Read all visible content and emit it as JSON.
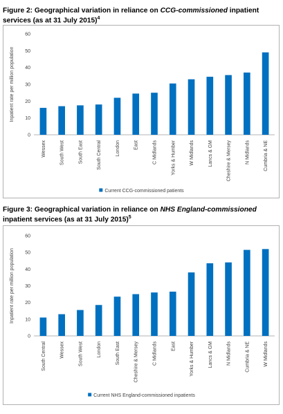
{
  "figure2": {
    "title_prefix": "Figure 2: Geographical variation in reliance on ",
    "title_em": "CCG-commissioned",
    "title_suffix": " inpatient services (as at 31 July 2015)",
    "footnote": "4"
  },
  "figure3": {
    "title_prefix": "Figure 3: Geographical variation in reliance on ",
    "title_em": "NHS England-commissioned",
    "title_suffix": " inpatient services (as at 31 July 2015)",
    "footnote": "5"
  },
  "chart_data": [
    {
      "type": "bar",
      "title": "",
      "xlabel": "",
      "ylabel": "Inpatient rate per million population",
      "ylim": [
        0,
        60
      ],
      "yticks": [
        0,
        10,
        20,
        30,
        40,
        50,
        60
      ],
      "grid": false,
      "legend_position": "bottom",
      "bar_color": "#0070c0",
      "categories": [
        "Wessex",
        "South West",
        "South East",
        "South Central",
        "London",
        "East",
        "C Midlands",
        "Yorks & Humber",
        "W Midlands",
        "Lancs & GM",
        "Cheshire & Mersey",
        "N Midlands",
        "Cumbria & NE"
      ],
      "series": [
        {
          "name": "Current CCG-commissioned patients",
          "values": [
            16,
            17,
            17.5,
            18,
            22,
            24.5,
            25,
            30.5,
            33,
            34.5,
            35.5,
            37,
            49
          ]
        }
      ]
    },
    {
      "type": "bar",
      "title": "",
      "xlabel": "",
      "ylabel": "Inpatient rate per million population",
      "ylim": [
        0,
        60
      ],
      "yticks": [
        0,
        10,
        20,
        30,
        40,
        50,
        60
      ],
      "grid": false,
      "legend_position": "bottom",
      "bar_color": "#0070c0",
      "categories": [
        "South Central",
        "Wessex",
        "South West",
        "London",
        "South East",
        "Cheshire & Mersey",
        "C Midlands",
        "East",
        "Yorks & Humber",
        "Lancs & GM",
        "N Midlands",
        "Cumbria & NE",
        "W Midlands"
      ],
      "series": [
        {
          "name": "Current NHS England-commissioned inpatients",
          "values": [
            11,
            13,
            15.5,
            18.5,
            23.5,
            25,
            26,
            26.5,
            38,
            43.5,
            44,
            51.5,
            52
          ]
        }
      ]
    }
  ]
}
